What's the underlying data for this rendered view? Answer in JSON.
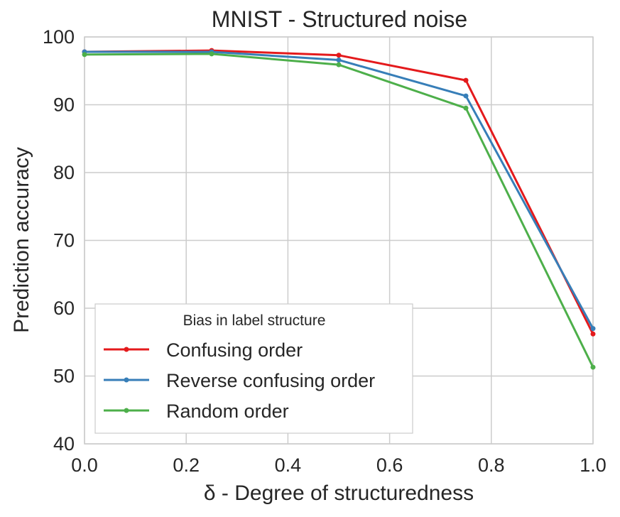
{
  "chart_data": {
    "type": "line",
    "title": "MNIST - Structured noise",
    "xlabel": "δ - Degree of structuredness",
    "ylabel": "Prediction accuracy",
    "xlim": [
      0.0,
      1.0
    ],
    "ylim": [
      40,
      100
    ],
    "x_ticks": [
      "0.0",
      "0.2",
      "0.4",
      "0.6",
      "0.8",
      "1.0"
    ],
    "y_ticks": [
      "40",
      "50",
      "60",
      "70",
      "80",
      "90",
      "100"
    ],
    "grid": true,
    "legend_title": "Bias in label structure",
    "legend_position": "lower-left",
    "x": [
      0.0,
      0.25,
      0.5,
      0.75,
      1.0
    ],
    "series": [
      {
        "name": "Confusing order",
        "color": "#e41a1c",
        "values": [
          97.8,
          98.0,
          97.3,
          93.6,
          56.2
        ]
      },
      {
        "name": "Reverse confusing order",
        "color": "#377eb8",
        "values": [
          97.8,
          97.8,
          96.6,
          91.3,
          57.0
        ]
      },
      {
        "name": "Random order",
        "color": "#4daf4a",
        "values": [
          97.4,
          97.5,
          95.9,
          89.5,
          51.3
        ]
      }
    ]
  }
}
